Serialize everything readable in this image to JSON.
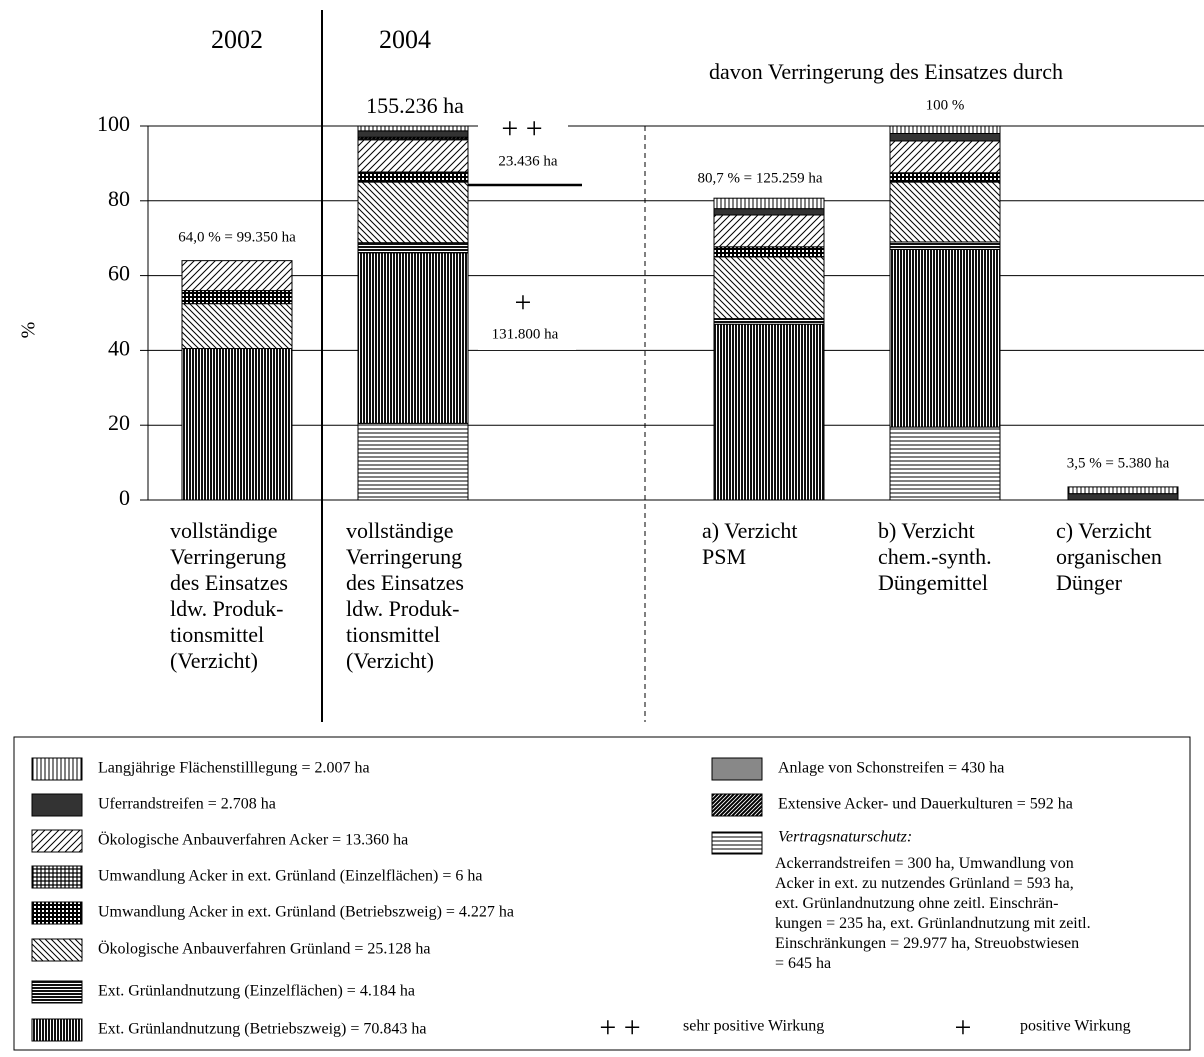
{
  "chart_data": {
    "type": "stacked_bar",
    "headers": [
      "2002",
      "2004",
      "davon Verringerung des Einsatzes durch"
    ],
    "ylabel": "%",
    "categories": [
      "vollständige\nVerringerung\ndes Einsatzes\nldw. Produk-\ntionsmittel\n(Verzicht)",
      "vollständige\nVerringerung\ndes Einsatzes\nldw. Produk-\ntionsmittel\n(Verzicht)",
      "a) Verzicht\nPSM",
      "b) Verzicht\nchem.-synth.\nDüngemittel",
      "c) Verzicht\norganischen\nDünger"
    ],
    "total_labels": [
      "64,0 % = 99.350 ha",
      "155.236 ha",
      "80,7 % = 125.259 ha",
      "100 %",
      "3,5 % = 5.380 ha"
    ],
    "annotations": [
      "+ +",
      "23.436 ha",
      "+",
      "131.800 ha"
    ],
    "ylim": [
      0,
      100
    ],
    "yticks": [
      0,
      20,
      40,
      60,
      80,
      100
    ],
    "grid": true,
    "series": [
      {
        "name": "Vertragsnaturschutz:",
        "description": "Ackerrandstreifen = 300 ha, Umwandlung von\nAcker in ext. zu nutzendes Grünland = 593 ha,\next. Grünlandnutzung ohne zeitl. Einschrän-\nkungen = 235 ha, ext. Grünlandnutzung mit zeitl.\nEinschränkungen = 29.977 ha, Streuobstwiesen\n= 645 ha",
        "pattern": "hlines",
        "values": [
          0,
          20.5,
          0,
          19.5,
          0
        ]
      },
      {
        "name": "Ext. Grünlandnutzung (Betriebszweig) = 70.843 ha",
        "pattern": "vlines-dark",
        "values": [
          40.5,
          45.6,
          47,
          47.5,
          0
        ]
      },
      {
        "name": "Ext. Grünlandnutzung (Einzelflächen) = 4.184 ha",
        "pattern": "hlines-dark",
        "values": [
          0,
          2.7,
          1.5,
          2,
          0
        ]
      },
      {
        "name": "Ökologische Anbauverfahren Grünland = 25.128 ha",
        "pattern": "backhatch",
        "values": [
          12,
          16.2,
          16.5,
          16,
          0
        ]
      },
      {
        "name": "Umwandlung Acker in ext. Grünland (Betriebszweig) = 4.227 ha",
        "pattern": "checker-dark",
        "values": [
          3.5,
          2.7,
          2.7,
          2.5,
          0
        ]
      },
      {
        "name": "Umwandlung Acker in ext. Grünland (Einzelflächen) = 6 ha",
        "pattern": "checker",
        "values": [
          0,
          0,
          0,
          0,
          0
        ]
      },
      {
        "name": "Ökologische Anbauverfahren Acker = 13.360 ha",
        "pattern": "hatch",
        "values": [
          8,
          8.6,
          8.5,
          8.5,
          0
        ]
      },
      {
        "name": "Anlage von Schonstreifen = 430 ha",
        "pattern": "gray",
        "values": [
          0,
          0.3,
          0,
          0,
          0
        ]
      },
      {
        "name": "Extensive Acker- und Dauerkulturen = 592 ha",
        "pattern": "hatch-dark",
        "values": [
          0,
          0.4,
          0,
          0,
          0
        ]
      },
      {
        "name": "Uferrandstreifen = 2.708 ha",
        "pattern": "solid-dark",
        "values": [
          0,
          1.7,
          1.7,
          2,
          1.7
        ]
      },
      {
        "name": "Langjährige Flächenstilllegung = 2.007 ha",
        "pattern": "vlines",
        "values": [
          0,
          1.3,
          2.8,
          2,
          1.8
        ]
      }
    ],
    "legend_symbols": [
      "+ +",
      "sehr positive Wirkung",
      "+",
      "positive Wirkung"
    ]
  }
}
